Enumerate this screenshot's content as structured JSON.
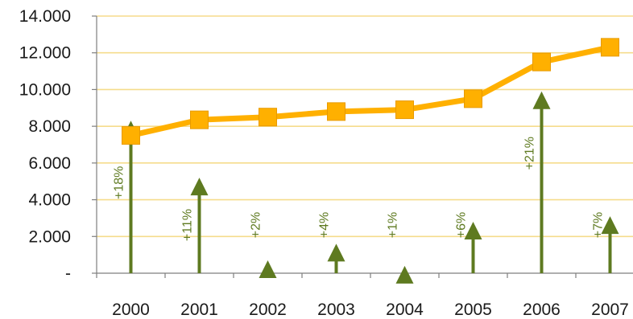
{
  "chart_data": {
    "type": "line",
    "title": "",
    "xlabel": "",
    "ylabel": "",
    "ylim": [
      0,
      14000
    ],
    "yticks": [
      {
        "value": 0,
        "label": "-"
      },
      {
        "value": 2000,
        "label": "2.000"
      },
      {
        "value": 4000,
        "label": "4.000"
      },
      {
        "value": 6000,
        "label": "6.000"
      },
      {
        "value": 8000,
        "label": "8.000"
      },
      {
        "value": 10000,
        "label": "10.000"
      },
      {
        "value": 12000,
        "label": "12.000"
      },
      {
        "value": 14000,
        "label": "14.000"
      }
    ],
    "grid": true,
    "categories": [
      "2000",
      "2001",
      "2002",
      "2003",
      "2004",
      "2005",
      "2006",
      "2007"
    ],
    "series": [
      {
        "type": "line",
        "values": [
          7500,
          8350,
          8500,
          8800,
          8900,
          9500,
          11500,
          12300
        ]
      },
      {
        "type": "arrows",
        "values": [
          8300,
          5200,
          700,
          1600,
          400,
          2800,
          9900,
          3100
        ],
        "labels": [
          "+18%",
          "+11%",
          "+2%",
          "+4%",
          "+1%",
          "+6%",
          "+21%",
          "+7%"
        ]
      }
    ],
    "colors": {
      "line": "#ffb000",
      "arrow": "#5e7a20",
      "grid": "#f5dc8c",
      "axis": "#7f7f7f"
    }
  }
}
